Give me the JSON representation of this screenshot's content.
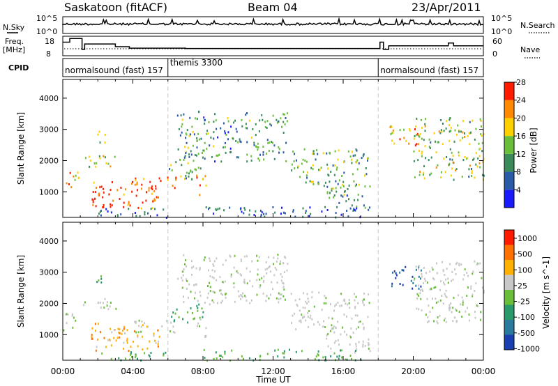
{
  "chart_data": {
    "type": "heatmap",
    "header": {
      "station": "Saskatoon (fitACF)",
      "beam": "Beam 04",
      "date": "23/Apr/2011"
    },
    "noise_panel": {
      "left_label": "N.Sky",
      "right_label": "N.Search",
      "left_ticks": [
        "10^5",
        "10^0"
      ],
      "right_ticks": [
        "10^5",
        "10^0"
      ]
    },
    "freq_panel": {
      "left_label_1": "Freq.",
      "left_label_2": "[MHz]",
      "right_label": "Nave",
      "left_ticks": [
        "18",
        "8"
      ],
      "right_ticks": [
        "60",
        "0"
      ],
      "freq_steps": [
        {
          "t": 0.0,
          "v": 15.5
        },
        {
          "t": 0.4,
          "v": 17.5
        },
        {
          "t": 1.1,
          "v": 11.5
        },
        {
          "t": 1.25,
          "v": 14.5
        },
        {
          "t": 3.0,
          "v": 13
        },
        {
          "t": 3.8,
          "v": 12.2
        },
        {
          "t": 7.0,
          "v": 12.0
        },
        {
          "t": 16.0,
          "v": 12.0
        },
        {
          "t": 18.1,
          "v": 15.5
        },
        {
          "t": 18.3,
          "v": 11.5
        },
        {
          "t": 18.6,
          "v": 13.5
        },
        {
          "t": 22.0,
          "v": 15
        },
        {
          "t": 22.3,
          "v": 13.5
        },
        {
          "t": 24.0,
          "v": 13.5
        }
      ]
    },
    "cpid": {
      "label": "CPID",
      "segments": [
        {
          "start": 0.0,
          "end": 6.0,
          "text": "normalsound (fast) 157"
        },
        {
          "start": 6.0,
          "end": 18.0,
          "text": "themis 3300"
        },
        {
          "start": 18.0,
          "end": 24.0,
          "text": "normalsound (fast) 157"
        }
      ]
    },
    "power_panel": {
      "ylabel": "Slant Range [km]",
      "yticks": [
        1000,
        2000,
        3000,
        4000
      ],
      "ylim": [
        180,
        4600
      ],
      "colorbar_label": "Power [dB]",
      "colorbar_ticks": [
        "4",
        "8",
        "12",
        "16",
        "20",
        "24",
        "28"
      ],
      "colorbar_range": [
        0,
        30
      ],
      "colors": [
        "#1a1aff",
        "#2a5aa8",
        "#3a8a5a",
        "#6abf3a",
        "#ffd000",
        "#ff8a00",
        "#ff1a00"
      ]
    },
    "velocity_panel": {
      "ylabel": "Slant Range [km]",
      "yticks": [
        1000,
        2000,
        3000,
        4000
      ],
      "ylim": [
        180,
        4600
      ],
      "colorbar_label": "Velocity [m s^-1]",
      "colorbar_ticks": [
        "1000",
        "500",
        "100",
        "25",
        "-25",
        "-100",
        "-500",
        "-1000"
      ],
      "colors": [
        "#1a3fb0",
        "#2a7aa0",
        "#2a9a6a",
        "#6abf3a",
        "#c8c8c8",
        "#ffb000",
        "#ff7000",
        "#ff1a00"
      ]
    },
    "xaxis": {
      "label": "Time UT",
      "ticks": [
        "00:00",
        "04:00",
        "08:00",
        "12:00",
        "16:00",
        "20:00",
        "00:00"
      ],
      "xlim": [
        0,
        24
      ]
    },
    "scatter_regions": [
      {
        "t0": 0.0,
        "t1": 0.9,
        "r0": 1100,
        "r1": 1700,
        "p": 21,
        "v": "n"
      },
      {
        "t0": 1.0,
        "t1": 3.0,
        "r0": 1800,
        "r1": 2200,
        "p": 18,
        "v": "n"
      },
      {
        "t0": 1.8,
        "t1": 2.4,
        "r0": 2500,
        "r1": 3000,
        "p": 16,
        "v": "g"
      },
      {
        "t0": 1.6,
        "t1": 5.5,
        "r0": 500,
        "r1": 1400,
        "p": 27,
        "v": "o"
      },
      {
        "t0": 4.0,
        "t1": 6.5,
        "r0": 1100,
        "r1": 1500,
        "p": 25,
        "v": "n"
      },
      {
        "t0": 6.0,
        "t1": 8.0,
        "r0": 1400,
        "r1": 2000,
        "p": 13,
        "v": "g"
      },
      {
        "t0": 7.6,
        "t1": 8.2,
        "r0": 850,
        "r1": 1600,
        "p": 24,
        "v": "n"
      },
      {
        "t0": 6.5,
        "t1": 12.8,
        "r0": 2000,
        "r1": 3600,
        "p": 11,
        "v": "n"
      },
      {
        "t0": 13.0,
        "t1": 17.5,
        "r0": 1200,
        "r1": 2400,
        "p": 13,
        "v": "n"
      },
      {
        "t0": 15.0,
        "t1": 17.5,
        "r0": 450,
        "r1": 1300,
        "p": 11,
        "v": "n"
      },
      {
        "t0": 18.5,
        "t1": 20.5,
        "r0": 2500,
        "r1": 3200,
        "p": 21,
        "v": "b"
      },
      {
        "t0": 20.0,
        "t1": 24.0,
        "r0": 1400,
        "r1": 3400,
        "p": 15,
        "v": "n"
      },
      {
        "t0": 8.0,
        "t1": 17.0,
        "r0": 200,
        "r1": 550,
        "p": 6,
        "v": "g"
      },
      {
        "t0": 2.0,
        "t1": 6.0,
        "r0": 200,
        "r1": 500,
        "p": 5,
        "v": "g"
      }
    ]
  }
}
